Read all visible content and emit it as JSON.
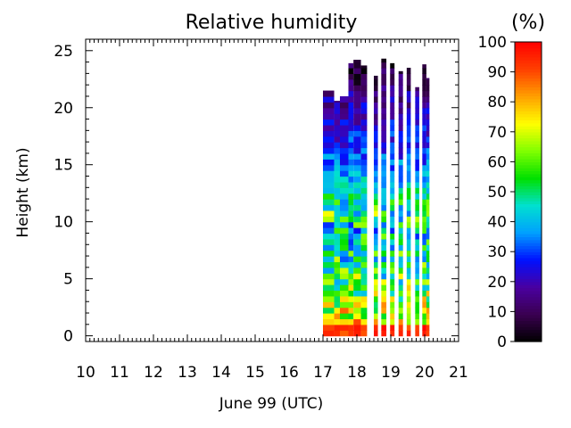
{
  "chart_data": {
    "type": "heatmap",
    "title": "Relative humidity",
    "xlabel": "June 99 (UTC)",
    "ylabel": "Height (km)",
    "xlim": [
      10,
      21
    ],
    "ylim": [
      -0.5,
      26
    ],
    "x_ticks": [
      "10",
      "11",
      "12",
      "13",
      "14",
      "15",
      "16",
      "17",
      "18",
      "19",
      "20",
      "21"
    ],
    "y_ticks": [
      "0",
      "5",
      "10",
      "15",
      "20",
      "25"
    ],
    "colorbar": {
      "unit_label": "(%)",
      "range": [
        0,
        100
      ],
      "ticks": [
        "0",
        "10",
        "20",
        "30",
        "40",
        "50",
        "60",
        "70",
        "80",
        "90",
        "100"
      ],
      "colors": [
        "#000000",
        "#3a0050",
        "#4a00a0",
        "#0010ff",
        "#00a0ff",
        "#00e0d0",
        "#00e000",
        "#80ff00",
        "#ffff00",
        "#ffa000",
        "#ff4000",
        "#ff0000"
      ]
    },
    "profiles": [
      {
        "start": 17.0,
        "end": 17.33,
        "top_km": 21.5
      },
      {
        "start": 17.33,
        "end": 17.5,
        "top_km": 20.6
      },
      {
        "start": 17.5,
        "end": 17.75,
        "top_km": 21.0
      },
      {
        "start": 17.75,
        "end": 17.9,
        "top_km": 23.9
      },
      {
        "start": 17.9,
        "end": 18.12,
        "top_km": 24.2
      },
      {
        "start": 18.12,
        "end": 18.3,
        "top_km": 23.7
      },
      {
        "start": 18.5,
        "end": 18.62,
        "top_km": 22.8
      },
      {
        "start": 18.72,
        "end": 18.87,
        "top_km": 24.3
      },
      {
        "start": 18.98,
        "end": 19.11,
        "top_km": 23.9
      },
      {
        "start": 19.23,
        "end": 19.36,
        "top_km": 23.2
      },
      {
        "start": 19.47,
        "end": 19.59,
        "top_km": 23.5
      },
      {
        "start": 19.72,
        "end": 19.84,
        "top_km": 21.8
      },
      {
        "start": 19.93,
        "end": 20.05,
        "top_km": 23.8
      },
      {
        "start": 20.05,
        "end": 20.14,
        "top_km": 22.6
      }
    ],
    "rh_profile_km": [
      0,
      1,
      2,
      3,
      4,
      5,
      7,
      9,
      10,
      11,
      12,
      14,
      16,
      18,
      20,
      22,
      24
    ],
    "rh_profile_pct": [
      90,
      82,
      70,
      62,
      60,
      55,
      50,
      45,
      48,
      55,
      50,
      38,
      30,
      25,
      20,
      12,
      5
    ]
  }
}
